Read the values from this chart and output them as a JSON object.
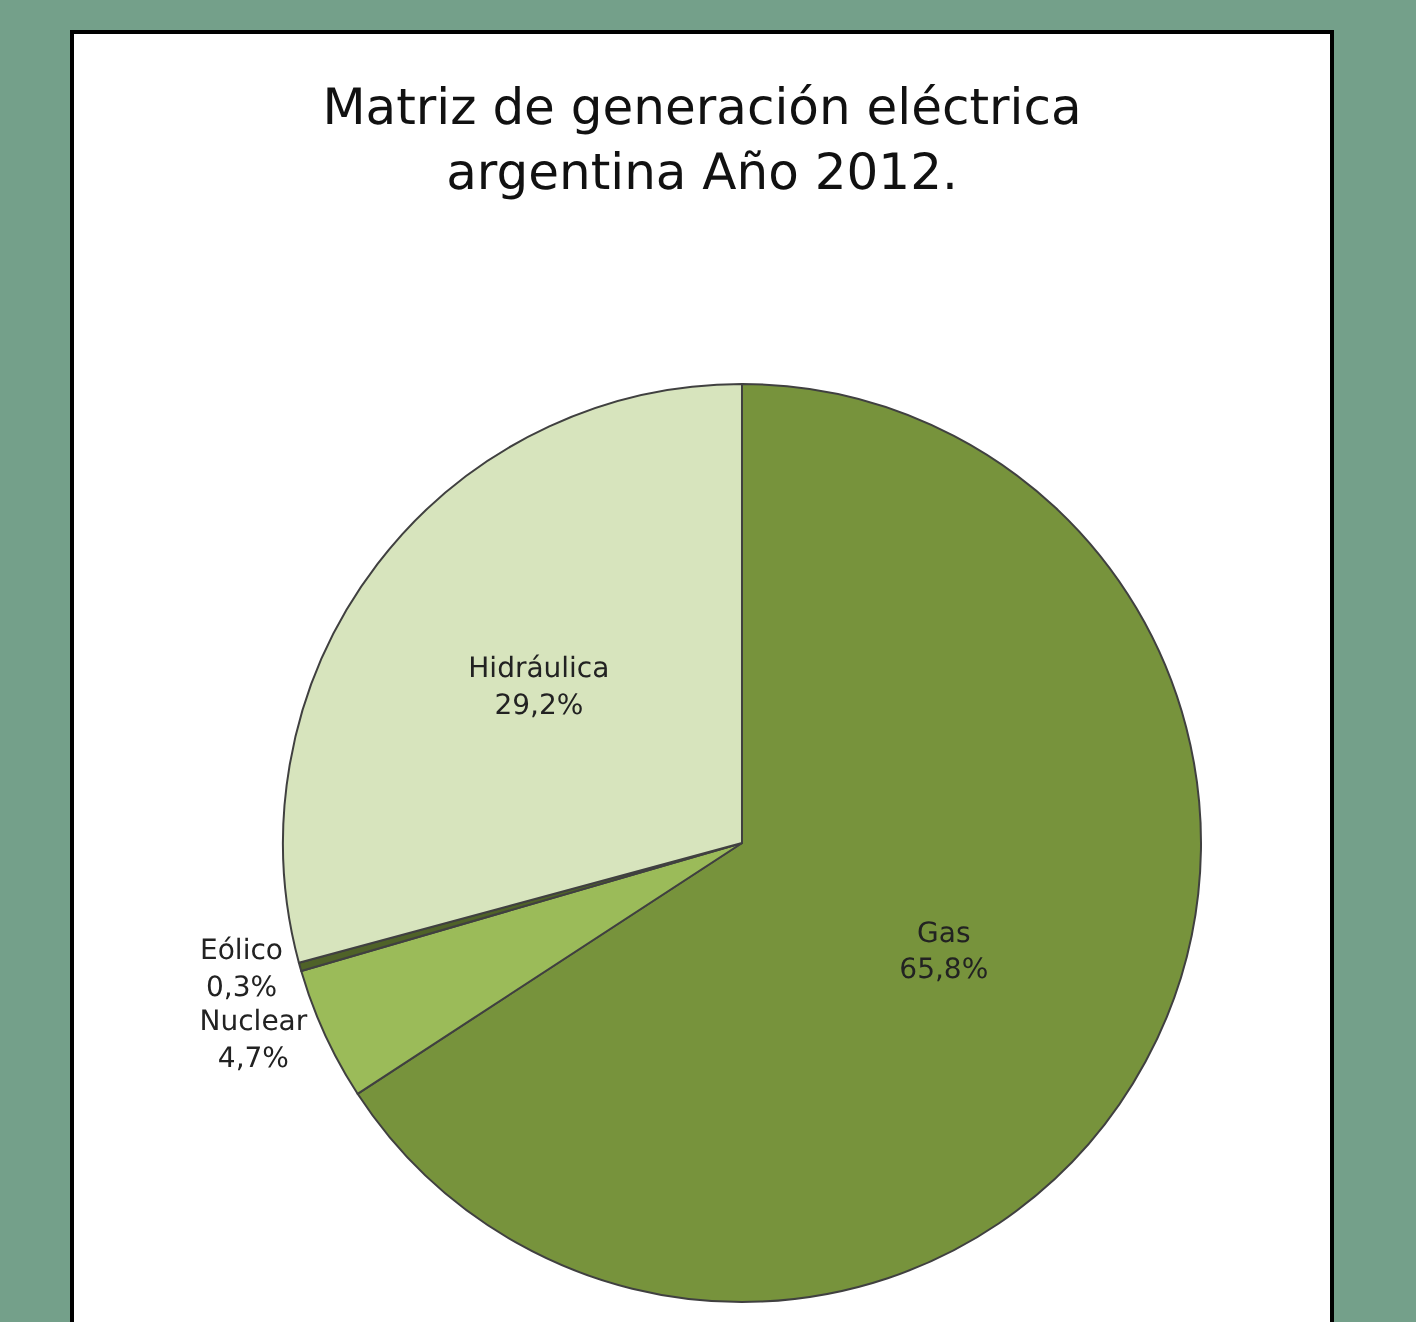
{
  "chart_data": {
    "type": "pie",
    "title": "Matriz de generación eléctrica argentina Año 2012.",
    "categories": [
      "Gas",
      "Nuclear",
      "Eólico",
      "Hidráulica"
    ],
    "values": [
      65.8,
      4.7,
      0.3,
      29.2
    ],
    "value_labels": [
      "65,8%",
      "4,7%",
      "0,3%",
      "29,2%"
    ],
    "colors": [
      "#77933c",
      "#9bbb59",
      "#4f6228",
      "#d7e4bd"
    ],
    "legend": false
  }
}
